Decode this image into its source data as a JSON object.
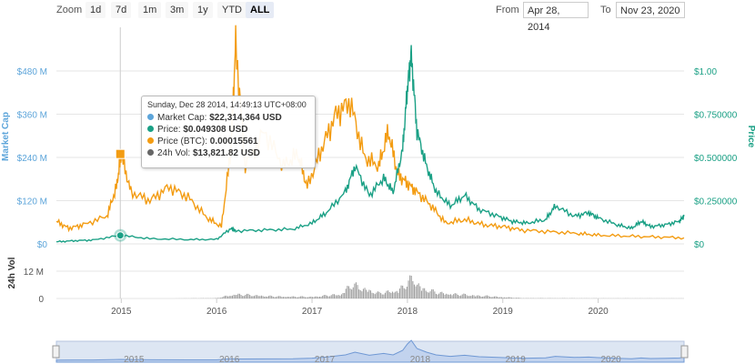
{
  "toolbar": {
    "zoom_label": "Zoom",
    "zoom_buttons": [
      "1d",
      "7d",
      "1m",
      "3m",
      "1y",
      "YTD",
      "ALL"
    ],
    "active_zoom": "ALL",
    "from_label": "From",
    "from_value": "Apr 28, 2014",
    "to_label": "To",
    "to_value": "Nov 23, 2020"
  },
  "tooltip": {
    "header": "Sunday, Dec 28 2014, 14:49:13 UTC+08:00",
    "rows": [
      {
        "label": "Market Cap:",
        "value": "$22,314,364 USD",
        "color": "#5da5da"
      },
      {
        "label": "Price:",
        "value": "$0.049308 USD",
        "color": "#1aa085"
      },
      {
        "label": "Price (BTC):",
        "value": "0.00015561",
        "color": "#f39c12"
      },
      {
        "label": "24h Vol:",
        "value": "$13,821.82 USD",
        "color": "#666666"
      }
    ]
  },
  "chart_data": {
    "type": "line",
    "left_axis_title": "Market Cap",
    "left_ticks": [
      "$0",
      "$120 M",
      "$240 M",
      "$360 M",
      "$480 M"
    ],
    "left_tick_values": [
      0,
      120,
      240,
      360,
      480
    ],
    "right_axis_title": "Price",
    "right_ticks": [
      "$0",
      "$0.250000",
      "$0.500000",
      "$0.750000",
      "$1.00"
    ],
    "right_tick_values": [
      0,
      0.25,
      0.5,
      0.75,
      1.0
    ],
    "volume_axis_title": "24h Vol",
    "volume_ticks": [
      "0",
      "12 M"
    ],
    "volume_tick_values": [
      0,
      12
    ],
    "x_ticks": [
      "2015",
      "2016",
      "2017",
      "2018",
      "2019",
      "2020"
    ],
    "x_range": [
      2014.32,
      2020.9
    ],
    "navigator_ticks": [
      "2015",
      "2016",
      "2017",
      "2018",
      "2019",
      "2020"
    ],
    "series": [
      {
        "name": "Price",
        "color": "#1aa085",
        "x": [
          2014.32,
          2014.5,
          2014.7,
          2014.99,
          2015.3,
          2015.7,
          2016.0,
          2016.15,
          2016.2,
          2016.5,
          2016.8,
          2017.0,
          2017.15,
          2017.35,
          2017.45,
          2017.6,
          2017.75,
          2017.85,
          2017.95,
          2018.0,
          2018.04,
          2018.1,
          2018.2,
          2018.3,
          2018.45,
          2018.6,
          2018.75,
          2018.95,
          2019.1,
          2019.25,
          2019.45,
          2019.55,
          2019.75,
          2019.9,
          2020.0,
          2020.2,
          2020.35,
          2020.45,
          2020.55,
          2020.7,
          2020.85,
          2020.9
        ],
        "y": [
          0.012,
          0.018,
          0.022,
          0.049,
          0.03,
          0.025,
          0.026,
          0.09,
          0.075,
          0.08,
          0.085,
          0.12,
          0.18,
          0.3,
          0.45,
          0.28,
          0.38,
          0.3,
          0.55,
          0.9,
          1.1,
          0.65,
          0.45,
          0.3,
          0.22,
          0.28,
          0.2,
          0.16,
          0.13,
          0.12,
          0.14,
          0.22,
          0.16,
          0.18,
          0.15,
          0.11,
          0.09,
          0.13,
          0.1,
          0.11,
          0.13,
          0.16
        ]
      },
      {
        "name": "Price (BTC)",
        "color": "#f39c12",
        "x": [
          2014.32,
          2014.45,
          2014.6,
          2014.85,
          2014.95,
          2015.0,
          2015.1,
          2015.3,
          2015.5,
          2015.7,
          2015.9,
          2016.05,
          2016.15,
          2016.2,
          2016.3,
          2016.5,
          2016.7,
          2016.85,
          2016.95,
          2017.1,
          2017.25,
          2017.4,
          2017.55,
          2017.7,
          2017.8,
          2017.9,
          2018.0,
          2018.1,
          2018.25,
          2018.4,
          2018.6,
          2018.8,
          2019.0,
          2019.2,
          2019.5,
          2019.8,
          2020.0,
          2020.3,
          2020.6,
          2020.9
        ],
        "y": [
          0.13,
          0.09,
          0.11,
          0.16,
          0.33,
          0.52,
          0.3,
          0.25,
          0.33,
          0.27,
          0.15,
          0.1,
          0.55,
          1.16,
          0.45,
          0.65,
          0.45,
          0.52,
          0.33,
          0.55,
          0.75,
          0.82,
          0.5,
          0.45,
          0.65,
          0.4,
          0.35,
          0.3,
          0.22,
          0.12,
          0.14,
          0.11,
          0.1,
          0.08,
          0.07,
          0.06,
          0.05,
          0.045,
          0.04,
          0.035
        ]
      },
      {
        "name": "24h Vol",
        "color": "#888888",
        "x": [
          2015.0,
          2015.5,
          2016.0,
          2016.1,
          2016.2,
          2016.6,
          2017.0,
          2017.3,
          2017.4,
          2017.5,
          2017.7,
          2017.9,
          2018.0,
          2018.05,
          2018.15,
          2018.3,
          2018.5,
          2018.8,
          2019.0,
          2019.2,
          2020.0,
          2020.9
        ],
        "y": [
          0.01,
          0.01,
          0.2,
          1.5,
          2.5,
          1.2,
          1.0,
          2.5,
          8.0,
          6.5,
          3.0,
          5.0,
          9.0,
          12.0,
          6.0,
          3.5,
          2.5,
          1.5,
          0.8,
          0.2,
          0.1,
          0.05
        ]
      }
    ],
    "highlight": {
      "x": 2014.99,
      "price": 0.049,
      "btc": 0.52
    },
    "legend": "none",
    "grid": true
  }
}
